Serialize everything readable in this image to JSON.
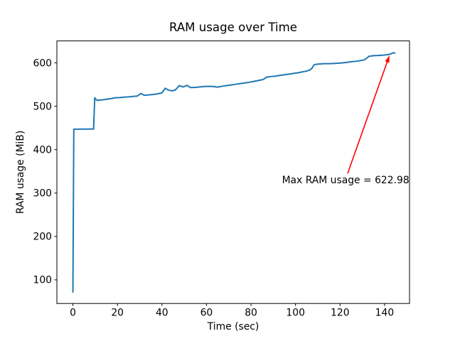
{
  "chart_data": {
    "type": "line",
    "title": "RAM usage over Time",
    "xlabel": "Time (sec)",
    "ylabel": "RAM usage (MiB)",
    "xlim": [
      -7.2,
      151.2
    ],
    "ylim": [
      45.5,
      650.5
    ],
    "xticks": [
      0,
      20,
      40,
      60,
      80,
      100,
      120,
      140
    ],
    "yticks": [
      100,
      200,
      300,
      400,
      500,
      600
    ],
    "grid": false,
    "legend_position": "none",
    "axis_color": "#000000",
    "background_color": "#ffffff",
    "series": [
      {
        "name": "RAM usage",
        "color": "#1f77b4",
        "points": [
          [
            0,
            72
          ],
          [
            0.4,
            447
          ],
          [
            9.3,
            447.5
          ],
          [
            9.8,
            519.5
          ],
          [
            10.4,
            515.5
          ],
          [
            11,
            513.5
          ],
          [
            13,
            514.5
          ],
          [
            15,
            516
          ],
          [
            17,
            517.5
          ],
          [
            19,
            519.5
          ],
          [
            21,
            520
          ],
          [
            23,
            521
          ],
          [
            25,
            521.5
          ],
          [
            27,
            522.5
          ],
          [
            29,
            523.5
          ],
          [
            30.5,
            529.5
          ],
          [
            32,
            525.5
          ],
          [
            34,
            526
          ],
          [
            36,
            527
          ],
          [
            38,
            528.5
          ],
          [
            40,
            531
          ],
          [
            41.5,
            541.5
          ],
          [
            43,
            537
          ],
          [
            44.5,
            535.5
          ],
          [
            46,
            537.5
          ],
          [
            47.8,
            547.5
          ],
          [
            49.5,
            544.5
          ],
          [
            51.3,
            548
          ],
          [
            52.8,
            543
          ],
          [
            55,
            543.5
          ],
          [
            57,
            544.5
          ],
          [
            59,
            545.5
          ],
          [
            61,
            546
          ],
          [
            63,
            545.5
          ],
          [
            65,
            544
          ],
          [
            67,
            546
          ],
          [
            69,
            547.5
          ],
          [
            71,
            549
          ],
          [
            73,
            550.5
          ],
          [
            75,
            552
          ],
          [
            77,
            553.5
          ],
          [
            79,
            555
          ],
          [
            81,
            557
          ],
          [
            83,
            559
          ],
          [
            85,
            561
          ],
          [
            85.8,
            562.5
          ],
          [
            87,
            567
          ],
          [
            89,
            568.5
          ],
          [
            91,
            569.5
          ],
          [
            93,
            571
          ],
          [
            95,
            572.5
          ],
          [
            97,
            574
          ],
          [
            99,
            575.5
          ],
          [
            101,
            577
          ],
          [
            103,
            579
          ],
          [
            105,
            581
          ],
          [
            106.5,
            584
          ],
          [
            107.3,
            587
          ],
          [
            108.3,
            595
          ],
          [
            109,
            596.5
          ],
          [
            111,
            597.5
          ],
          [
            113,
            598
          ],
          [
            115,
            598
          ],
          [
            117,
            598.5
          ],
          [
            119,
            599
          ],
          [
            121,
            600
          ],
          [
            123,
            601
          ],
          [
            125,
            602.5
          ],
          [
            127,
            603.5
          ],
          [
            129,
            605
          ],
          [
            131,
            607
          ],
          [
            132,
            611
          ],
          [
            133,
            615
          ],
          [
            135,
            616.5
          ],
          [
            137,
            617
          ],
          [
            139,
            617.5
          ],
          [
            141,
            618.5
          ],
          [
            142.5,
            620
          ],
          [
            143.8,
            622.98
          ],
          [
            144.6,
            622.4
          ]
        ]
      }
    ],
    "annotation": {
      "text": "Max RAM usage = 622.98",
      "max_value": 622.98,
      "color": "#ff0000",
      "arrow_tip": [
        142.2,
        617
      ],
      "arrow_tail": [
        123.4,
        345
      ],
      "text_center": [
        122.5,
        330.6
      ]
    }
  }
}
